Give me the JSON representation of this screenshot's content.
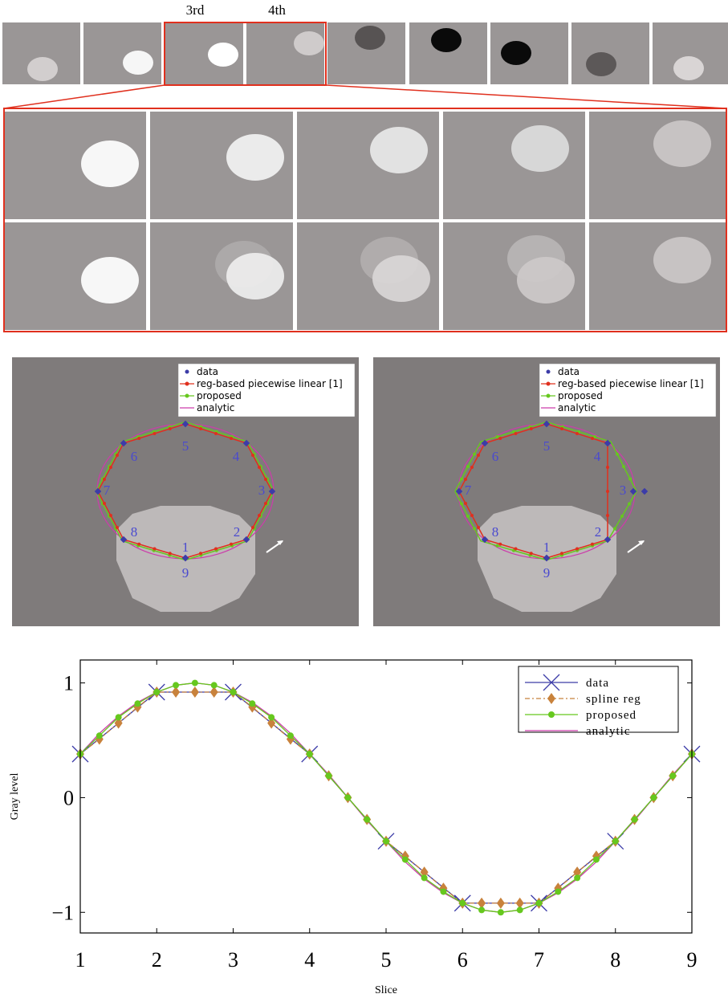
{
  "strip": {
    "labels": [
      "3rd",
      "4th"
    ]
  },
  "panels": [
    {
      "legend": [
        "data",
        "reg-based piecewise linear [1]",
        "proposed",
        "analytic"
      ],
      "labels": [
        "1",
        "2",
        "3",
        "4",
        "5",
        "6",
        "7",
        "8",
        "9"
      ]
    },
    {
      "legend": [
        "data",
        "reg-based piecewise linear [1]",
        "proposed",
        "analytic"
      ],
      "labels": [
        "1",
        "2",
        "3",
        "4",
        "5",
        "6",
        "7",
        "8",
        "9"
      ]
    }
  ],
  "chart_data": {
    "type": "line",
    "x_label": "Slice",
    "y_label": "Gray level",
    "x": [
      1,
      1.25,
      1.5,
      1.75,
      2,
      2.25,
      2.5,
      2.75,
      3,
      3.25,
      3.5,
      3.75,
      4,
      4.25,
      4.5,
      4.75,
      5,
      5.25,
      5.5,
      5.75,
      6,
      6.25,
      6.5,
      6.75,
      7,
      7.25,
      7.5,
      7.75,
      8,
      8.25,
      8.5,
      8.75,
      9
    ],
    "series": [
      {
        "name": "data",
        "color": "#3c3ca8",
        "marker": "x",
        "x": [
          1,
          2,
          3,
          4,
          5,
          6,
          7,
          8,
          9
        ],
        "values": [
          0.38,
          0.92,
          0.92,
          0.38,
          -0.38,
          -0.92,
          -0.92,
          -0.38,
          0.38
        ]
      },
      {
        "name": "spline reg",
        "color": "#c8823c",
        "marker": "diamond",
        "dash": "6 3 2 3",
        "values": [
          0.38,
          0.51,
          0.65,
          0.79,
          0.92,
          0.92,
          0.92,
          0.92,
          0.92,
          0.79,
          0.65,
          0.51,
          0.38,
          0.19,
          0,
          -0.19,
          -0.38,
          -0.51,
          -0.65,
          -0.79,
          -0.92,
          -0.92,
          -0.92,
          -0.92,
          -0.92,
          -0.79,
          -0.65,
          -0.51,
          -0.38,
          -0.19,
          0,
          0.19,
          0.38
        ]
      },
      {
        "name": "proposed",
        "color": "#66c81e",
        "marker": "circle",
        "values": [
          0.38,
          0.54,
          0.7,
          0.82,
          0.92,
          0.98,
          1,
          0.98,
          0.92,
          0.82,
          0.7,
          0.54,
          0.38,
          0.19,
          0,
          -0.19,
          -0.38,
          -0.54,
          -0.7,
          -0.82,
          -0.92,
          -0.98,
          -1,
          -0.98,
          -0.92,
          -0.82,
          -0.7,
          -0.54,
          -0.38,
          -0.19,
          0,
          0.19,
          0.38
        ]
      },
      {
        "name": "analytic",
        "color": "#cc3caa",
        "marker": "none",
        "values": [
          0.38,
          0.56,
          0.71,
          0.83,
          0.92,
          0.98,
          1,
          0.98,
          0.92,
          0.83,
          0.71,
          0.56,
          0.38,
          0.2,
          0,
          -0.2,
          -0.38,
          -0.56,
          -0.71,
          -0.83,
          -0.92,
          -0.98,
          -1,
          -0.98,
          -0.92,
          -0.83,
          -0.71,
          -0.56,
          -0.38,
          -0.2,
          0,
          0.2,
          0.38
        ]
      }
    ],
    "xlim": [
      1,
      9
    ],
    "xticks": [
      1,
      2,
      3,
      4,
      5,
      6,
      7,
      8,
      9
    ],
    "ylim": [
      -1.18,
      1.2
    ],
    "yticks": [
      {
        "value": -1,
        "label": "−1"
      },
      0,
      1
    ],
    "legend": "upper right"
  }
}
